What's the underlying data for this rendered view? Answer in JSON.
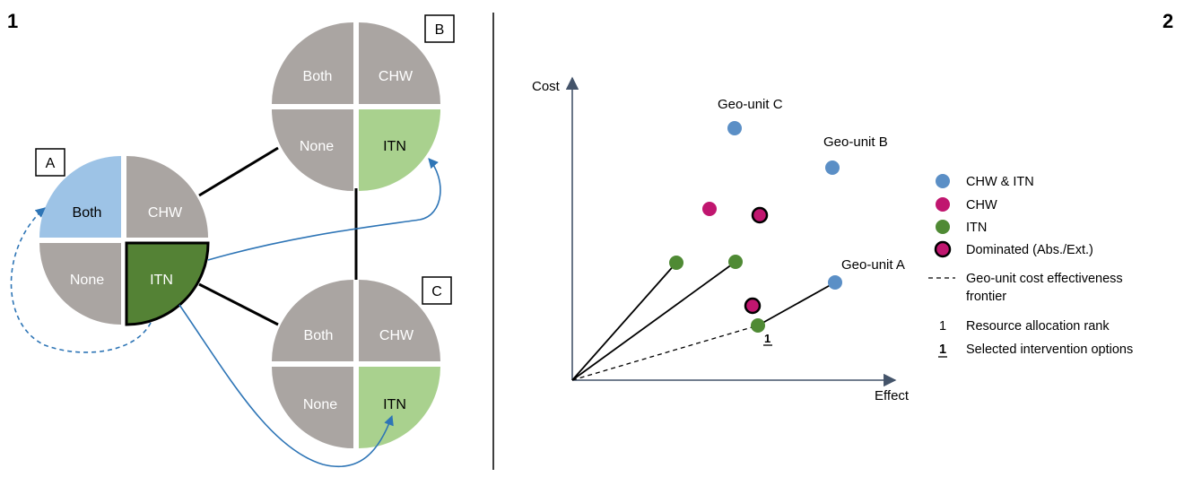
{
  "panels": {
    "left_number": "1",
    "right_number": "2"
  },
  "quadrant_labels": {
    "both": "Both",
    "chw": "CHW",
    "none": "None",
    "itn": "ITN"
  },
  "geo_units": [
    {
      "id": "A",
      "label": "A",
      "selected_quadrant": "itn",
      "highlighted_quadrant": "both"
    },
    {
      "id": "B",
      "label": "B",
      "highlighted_quadrant": "itn"
    },
    {
      "id": "C",
      "label": "C",
      "highlighted_quadrant": "itn"
    }
  ],
  "colors": {
    "grey": "#aaa5a2",
    "both_highlight": "#9dc3e6",
    "itn_selected": "#548235",
    "itn_light": "#a9d18e",
    "arrow_blue": "#2e75b6",
    "axis": "#44546a",
    "chw_itn_point": "#5b8fc6",
    "chw_point": "#c0166f",
    "itn_point": "#4f8a34",
    "dominated_fill": "#c0166f"
  },
  "plot": {
    "y_axis_label": "Cost",
    "x_axis_label": "Effect",
    "point_labels": {
      "geo_c": "Geo-unit C",
      "geo_b": "Geo-unit B",
      "geo_a": "Geo-unit A"
    },
    "rank_label": "1"
  },
  "legend": {
    "items": [
      {
        "type": "chw_itn",
        "label": "CHW & ITN"
      },
      {
        "type": "chw",
        "label": "CHW"
      },
      {
        "type": "itn",
        "label": "ITN"
      },
      {
        "type": "dominated",
        "label": "Dominated (Abs./Ext.)"
      },
      {
        "type": "frontier",
        "label": "Geo-unit cost effectiveness",
        "label2": "frontier"
      },
      {
        "type": "rank",
        "symbol": "1",
        "label": "Resource allocation rank"
      },
      {
        "type": "selected",
        "symbol": "1",
        "label": "Selected intervention options"
      }
    ]
  }
}
